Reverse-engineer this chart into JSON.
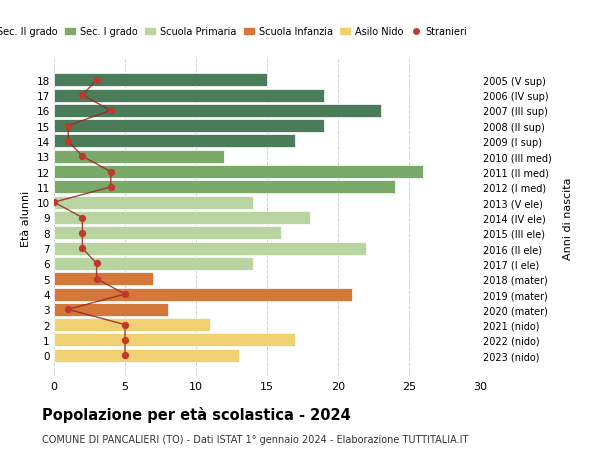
{
  "ages": [
    18,
    17,
    16,
    15,
    14,
    13,
    12,
    11,
    10,
    9,
    8,
    7,
    6,
    5,
    4,
    3,
    2,
    1,
    0
  ],
  "right_labels": [
    "2005 (V sup)",
    "2006 (IV sup)",
    "2007 (III sup)",
    "2008 (II sup)",
    "2009 (I sup)",
    "2010 (III med)",
    "2011 (II med)",
    "2012 (I med)",
    "2013 (V ele)",
    "2014 (IV ele)",
    "2015 (III ele)",
    "2016 (II ele)",
    "2017 (I ele)",
    "2018 (mater)",
    "2019 (mater)",
    "2020 (mater)",
    "2021 (nido)",
    "2022 (nido)",
    "2023 (nido)"
  ],
  "bar_values": [
    15,
    19,
    23,
    19,
    17,
    12,
    26,
    24,
    14,
    18,
    16,
    22,
    14,
    7,
    21,
    8,
    11,
    17,
    13
  ],
  "bar_colors": [
    "#4a7c59",
    "#4a7c59",
    "#4a7c59",
    "#4a7c59",
    "#4a7c59",
    "#7aaa6a",
    "#7aaa6a",
    "#7aaa6a",
    "#b8d4a0",
    "#b8d4a0",
    "#b8d4a0",
    "#b8d4a0",
    "#b8d4a0",
    "#d4773a",
    "#d4773a",
    "#d4773a",
    "#f0d070",
    "#f0d070",
    "#f0d070"
  ],
  "stranieri_values": [
    3,
    2,
    4,
    1,
    1,
    2,
    4,
    4,
    0,
    2,
    2,
    2,
    3,
    3,
    5,
    1,
    5,
    5,
    5
  ],
  "legend_labels": [
    "Sec. II grado",
    "Sec. I grado",
    "Scuola Primaria",
    "Scuola Infanzia",
    "Asilo Nido",
    "Stranieri"
  ],
  "legend_colors": [
    "#4a7c59",
    "#7aaa6a",
    "#b8d4a0",
    "#d4773a",
    "#f0d070",
    "#c0392b"
  ],
  "title": "Popolazione per età scolastica - 2024",
  "subtitle": "COMUNE DI PANCALIERI (TO) - Dati ISTAT 1° gennaio 2024 - Elaborazione TUTTITALIA.IT",
  "ylabel_left": "Età alunni",
  "ylabel_right": "Anni di nascita",
  "xlim": [
    0,
    30
  ],
  "xticks": [
    0,
    5,
    10,
    15,
    20,
    25,
    30
  ],
  "dot_color": "#c0392b",
  "line_color": "#9b2222",
  "background_color": "#ffffff",
  "grid_color": "#cccccc"
}
